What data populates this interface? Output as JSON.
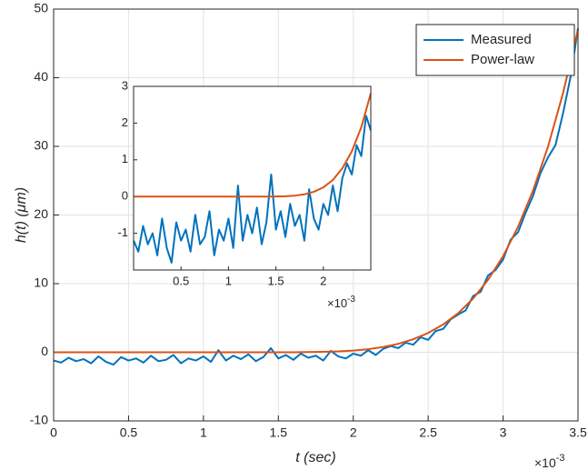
{
  "chart_data": [
    {
      "type": "line",
      "x_label": "t (sec)",
      "y_label": "h(t) (μm)",
      "x_scale_label": {
        "base": "×10",
        "exponent": "-3"
      },
      "xlim": [
        0,
        3.5
      ],
      "xticks": [
        0,
        0.5,
        1,
        1.5,
        2,
        2.5,
        3,
        3.5
      ],
      "ylim": [
        -10,
        50
      ],
      "yticks": [
        -10,
        0,
        10,
        20,
        30,
        40,
        50
      ],
      "grid": true,
      "legend": "northeast",
      "series": [
        {
          "name": "Measured",
          "color": "#0072BD",
          "x": [
            0,
            0.05,
            0.1,
            0.15,
            0.2,
            0.25,
            0.3,
            0.35,
            0.4,
            0.45,
            0.5,
            0.55,
            0.6,
            0.65,
            0.7,
            0.75,
            0.8,
            0.85,
            0.9,
            0.95,
            1.0,
            1.05,
            1.1,
            1.15,
            1.2,
            1.25,
            1.3,
            1.35,
            1.4,
            1.45,
            1.5,
            1.55,
            1.6,
            1.65,
            1.7,
            1.75,
            1.8,
            1.85,
            1.9,
            1.95,
            2.0,
            2.05,
            2.1,
            2.15,
            2.2,
            2.25,
            2.3,
            2.35,
            2.4,
            2.45,
            2.5,
            2.55,
            2.6,
            2.65,
            2.7,
            2.75,
            2.8,
            2.85,
            2.9,
            2.95,
            3.0,
            3.05,
            3.1,
            3.15,
            3.2,
            3.25,
            3.3,
            3.35,
            3.4,
            3.45,
            3.5
          ],
          "values": [
            -1.2,
            -1.5,
            -0.8,
            -1.3,
            -1.0,
            -1.6,
            -0.6,
            -1.4,
            -1.8,
            -0.7,
            -1.2,
            -0.9,
            -1.5,
            -0.5,
            -1.3,
            -1.1,
            -0.4,
            -1.6,
            -0.9,
            -1.2,
            -0.6,
            -1.4,
            0.3,
            -1.2,
            -0.5,
            -1.0,
            -0.3,
            -1.3,
            -0.7,
            0.6,
            -0.9,
            -0.4,
            -1.1,
            -0.2,
            -0.8,
            -0.5,
            -1.2,
            0.2,
            -0.6,
            -0.9,
            -0.2,
            -0.5,
            0.3,
            -0.4,
            0.5,
            0.9,
            0.6,
            1.4,
            1.1,
            2.2,
            1.8,
            3.1,
            3.4,
            4.8,
            5.5,
            6.1,
            8.2,
            8.8,
            11.2,
            12.0,
            13.5,
            16.4,
            17.5,
            20.3,
            22.8,
            26.1,
            28.4,
            30.2,
            34.8,
            40.1,
            47.2
          ]
        },
        {
          "name": "Power-law",
          "color": "#D95319",
          "x": [
            0,
            0.5,
            1.0,
            1.2,
            1.3,
            1.4,
            1.5,
            1.6,
            1.7,
            1.8,
            1.9,
            2.0,
            2.1,
            2.2,
            2.3,
            2.4,
            2.5,
            2.6,
            2.7,
            2.8,
            2.9,
            3.0,
            3.1,
            3.2,
            3.3,
            3.4,
            3.5
          ],
          "values": [
            0,
            0,
            0,
            0,
            0,
            0,
            0.002,
            0.008,
            0.025,
            0.06,
            0.13,
            0.25,
            0.45,
            0.77,
            1.23,
            1.89,
            2.81,
            4.05,
            5.69,
            7.83,
            10.56,
            14.0,
            18.29,
            23.56,
            29.98,
            37.73,
            47
          ]
        }
      ]
    },
    {
      "type": "line",
      "x_scale_label": {
        "base": "×10",
        "exponent": "-3"
      },
      "xlim": [
        0,
        2.5
      ],
      "xticks": [
        0.5,
        1,
        1.5,
        2
      ],
      "ylim": [
        -2,
        3
      ],
      "yticks": [
        -1,
        0,
        1,
        2,
        3
      ],
      "grid": false,
      "series": [
        {
          "color": "#0072BD",
          "x": [
            0,
            0.05,
            0.1,
            0.15,
            0.2,
            0.25,
            0.3,
            0.35,
            0.4,
            0.45,
            0.5,
            0.55,
            0.6,
            0.65,
            0.7,
            0.75,
            0.8,
            0.85,
            0.9,
            0.95,
            1.0,
            1.05,
            1.1,
            1.15,
            1.2,
            1.25,
            1.3,
            1.35,
            1.4,
            1.45,
            1.5,
            1.55,
            1.6,
            1.65,
            1.7,
            1.75,
            1.8,
            1.85,
            1.9,
            1.95,
            2.0,
            2.05,
            2.1,
            2.15,
            2.2,
            2.25,
            2.3,
            2.35,
            2.4,
            2.45,
            2.5
          ],
          "values": [
            -1.2,
            -1.5,
            -0.8,
            -1.3,
            -1.0,
            -1.6,
            -0.6,
            -1.4,
            -1.8,
            -0.7,
            -1.2,
            -0.9,
            -1.5,
            -0.5,
            -1.3,
            -1.1,
            -0.4,
            -1.6,
            -0.9,
            -1.2,
            -0.6,
            -1.4,
            0.3,
            -1.2,
            -0.5,
            -1.0,
            -0.3,
            -1.3,
            -0.7,
            0.6,
            -0.9,
            -0.4,
            -1.1,
            -0.2,
            -0.8,
            -0.5,
            -1.2,
            0.2,
            -0.6,
            -0.9,
            -0.2,
            -0.5,
            0.3,
            -0.4,
            0.5,
            0.9,
            0.6,
            1.4,
            1.1,
            2.2,
            1.8
          ]
        },
        {
          "color": "#D95319",
          "x": [
            0,
            0.5,
            1.0,
            1.2,
            1.3,
            1.4,
            1.5,
            1.6,
            1.7,
            1.8,
            1.9,
            2.0,
            2.1,
            2.2,
            2.3,
            2.4,
            2.5
          ],
          "values": [
            0,
            0,
            0,
            0,
            0,
            0,
            0.002,
            0.008,
            0.025,
            0.06,
            0.13,
            0.25,
            0.45,
            0.77,
            1.23,
            1.89,
            2.81
          ]
        }
      ]
    }
  ]
}
